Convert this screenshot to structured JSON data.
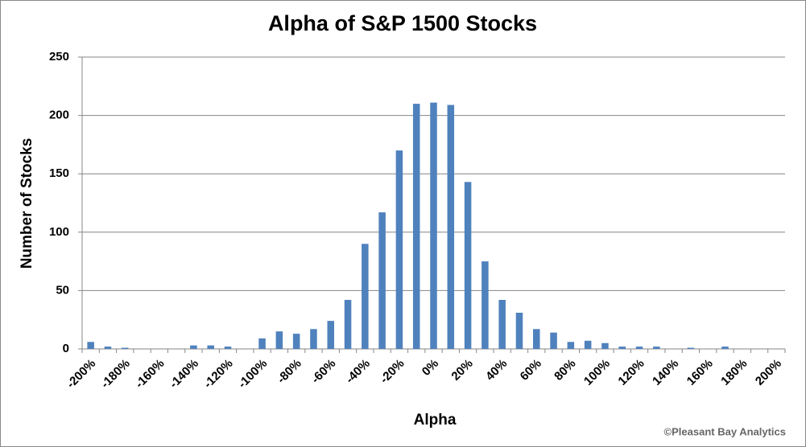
{
  "chart_data": {
    "type": "bar",
    "title": "Alpha of S&P 1500 Stocks",
    "x_label": "Alpha",
    "y_label": "Number of Stocks",
    "annotation": "©Pleasant Bay Analytics",
    "categories": [
      "-200%",
      null,
      "-180%",
      null,
      "-160%",
      null,
      "-140%",
      null,
      "-120%",
      null,
      "-100%",
      null,
      "-80%",
      null,
      "-60%",
      null,
      "-40%",
      null,
      "-20%",
      null,
      "0%",
      null,
      "20%",
      null,
      "40%",
      null,
      "60%",
      null,
      "80%",
      null,
      "100%",
      null,
      "120%",
      null,
      "140%",
      null,
      "160%",
      null,
      "180%",
      null,
      "200%"
    ],
    "values": [
      6,
      2,
      1,
      0,
      0,
      0,
      3,
      3,
      2,
      0,
      9,
      15,
      13,
      17,
      24,
      42,
      90,
      117,
      170,
      210,
      211,
      209,
      143,
      75,
      42,
      31,
      17,
      14,
      6,
      7,
      5,
      2,
      2,
      2,
      0,
      1,
      0,
      2,
      0,
      0,
      0
    ],
    "color": "#4f81bd",
    "ylim": [
      0,
      250
    ],
    "yticks": [
      0,
      50,
      100,
      150,
      200,
      250
    ],
    "grid": true
  }
}
